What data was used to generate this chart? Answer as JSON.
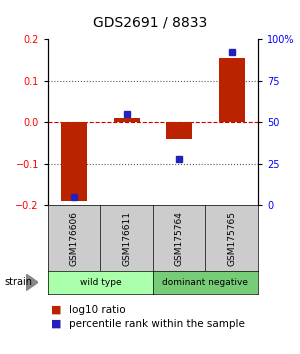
{
  "title": "GDS2691 / 8833",
  "samples": [
    "GSM176606",
    "GSM176611",
    "GSM175764",
    "GSM175765"
  ],
  "log10_ratio": [
    -0.19,
    0.01,
    -0.04,
    0.155
  ],
  "percentile_rank": [
    5,
    55,
    28,
    92
  ],
  "groups": [
    {
      "label": "wild type",
      "samples": [
        0,
        1
      ],
      "color": "#aaffaa"
    },
    {
      "label": "dominant negative",
      "samples": [
        2,
        3
      ],
      "color": "#77cc77"
    }
  ],
  "group_row_label": "strain",
  "ylim": [
    -0.2,
    0.2
  ],
  "yticks_left": [
    -0.2,
    -0.1,
    0,
    0.1,
    0.2
  ],
  "yticks_right": [
    0,
    25,
    50,
    75,
    100
  ],
  "bar_color": "#bb2200",
  "dot_color": "#2222bb",
  "hline_color": "#cc0000",
  "dotted_color": "#555555",
  "bg_color": "#ffffff",
  "plot_bg_color": "#ffffff",
  "sample_box_color": "#cccccc",
  "title_fontsize": 10,
  "tick_fontsize": 7,
  "label_fontsize": 7,
  "legend_fontsize": 7.5
}
